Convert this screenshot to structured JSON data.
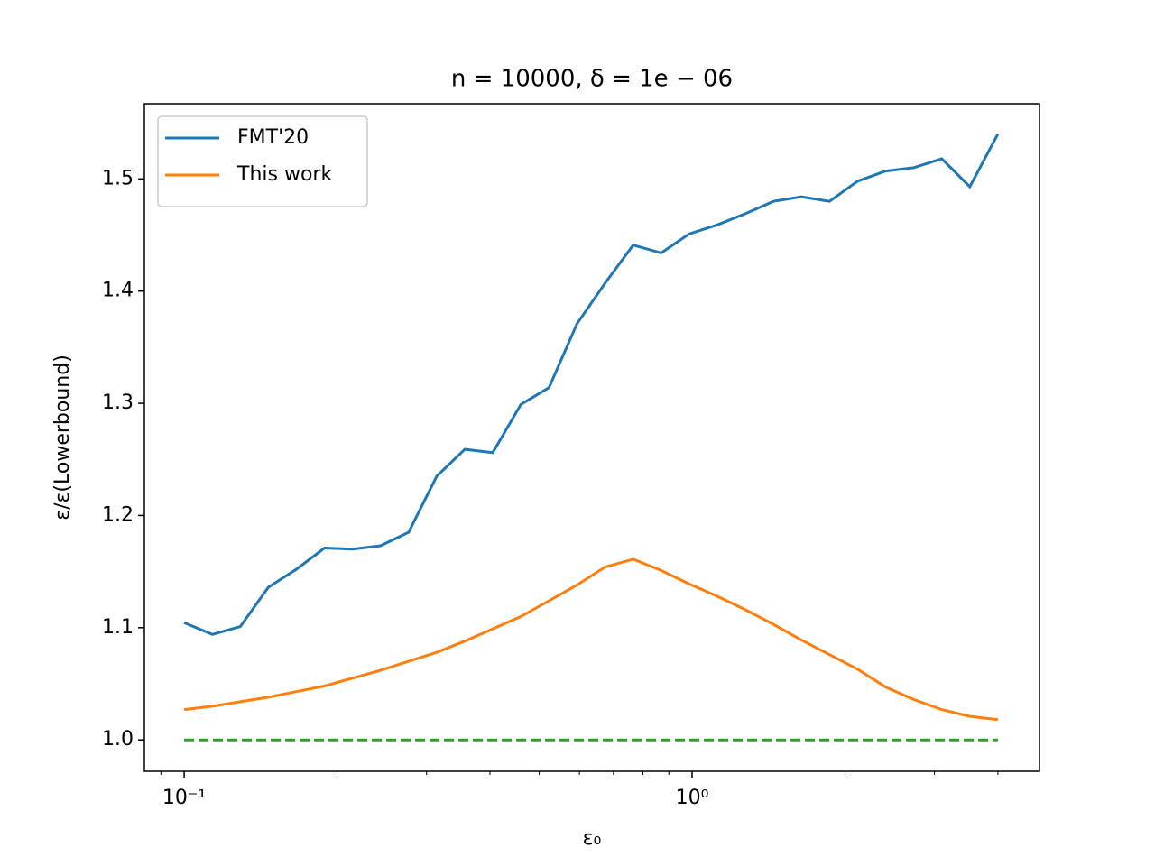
{
  "chart_data": {
    "type": "line",
    "title": "n = 10000, δ = 1e − 06",
    "xlabel": "ε₀",
    "ylabel": "ε/ε(Lowerbound)",
    "x": [
      0.1,
      0.1136,
      0.129,
      0.1465,
      0.1663,
      0.1889,
      0.2145,
      0.2436,
      0.2766,
      0.3142,
      0.3568,
      0.4052,
      0.4602,
      0.5226,
      0.5935,
      0.674,
      0.7655,
      0.8693,
      0.987,
      1.1209,
      1.273,
      1.4457,
      1.6418,
      1.8645,
      2.1174,
      2.4044,
      2.7306,
      3.101,
      3.5216,
      4.0
    ],
    "series": [
      {
        "name": "FMT'20",
        "color": "#1f77b4",
        "values": [
          1.1045,
          1.094,
          1.101,
          1.136,
          1.152,
          1.171,
          1.17,
          1.173,
          1.185,
          1.235,
          1.259,
          1.256,
          1.299,
          1.314,
          1.371,
          1.407,
          1.441,
          1.434,
          1.451,
          1.459,
          1.469,
          1.48,
          1.484,
          1.48,
          1.498,
          1.507,
          1.51,
          1.518,
          1.493,
          1.54
        ]
      },
      {
        "name": "This work",
        "color": "#ff7f0e",
        "values": [
          1.027,
          1.03,
          1.034,
          1.038,
          1.043,
          1.048,
          1.055,
          1.062,
          1.07,
          1.078,
          1.088,
          1.099,
          1.11,
          1.124,
          1.138,
          1.154,
          1.161,
          1.151,
          1.139,
          1.128,
          1.116,
          1.103,
          1.089,
          1.076,
          1.063,
          1.047,
          1.036,
          1.027,
          1.021,
          1.018
        ]
      },
      {
        "color": "#2ca02c",
        "linestyle": "dashed",
        "values": [
          1,
          1,
          1,
          1,
          1,
          1,
          1,
          1,
          1,
          1,
          1,
          1,
          1,
          1,
          1,
          1,
          1,
          1,
          1,
          1,
          1,
          1,
          1,
          1,
          1,
          1,
          1,
          1,
          1,
          1
        ]
      }
    ],
    "xscale": "log",
    "xlim": [
      0.0835,
      4.83
    ],
    "xticks": [
      {
        "value": 0.1,
        "label": "10⁻¹"
      },
      {
        "value": 1,
        "label": "10⁰"
      }
    ],
    "xminorticks": [
      0.09,
      0.2,
      0.3,
      0.4,
      0.5,
      0.6,
      0.7,
      0.8,
      0.9,
      2,
      3,
      4
    ],
    "ylim": [
      0.972,
      1.567
    ],
    "yticks": [
      {
        "value": 1,
        "label": "1.0"
      },
      1.1,
      1.2,
      1.3,
      1.4,
      1.5
    ],
    "legend": "upper left"
  }
}
